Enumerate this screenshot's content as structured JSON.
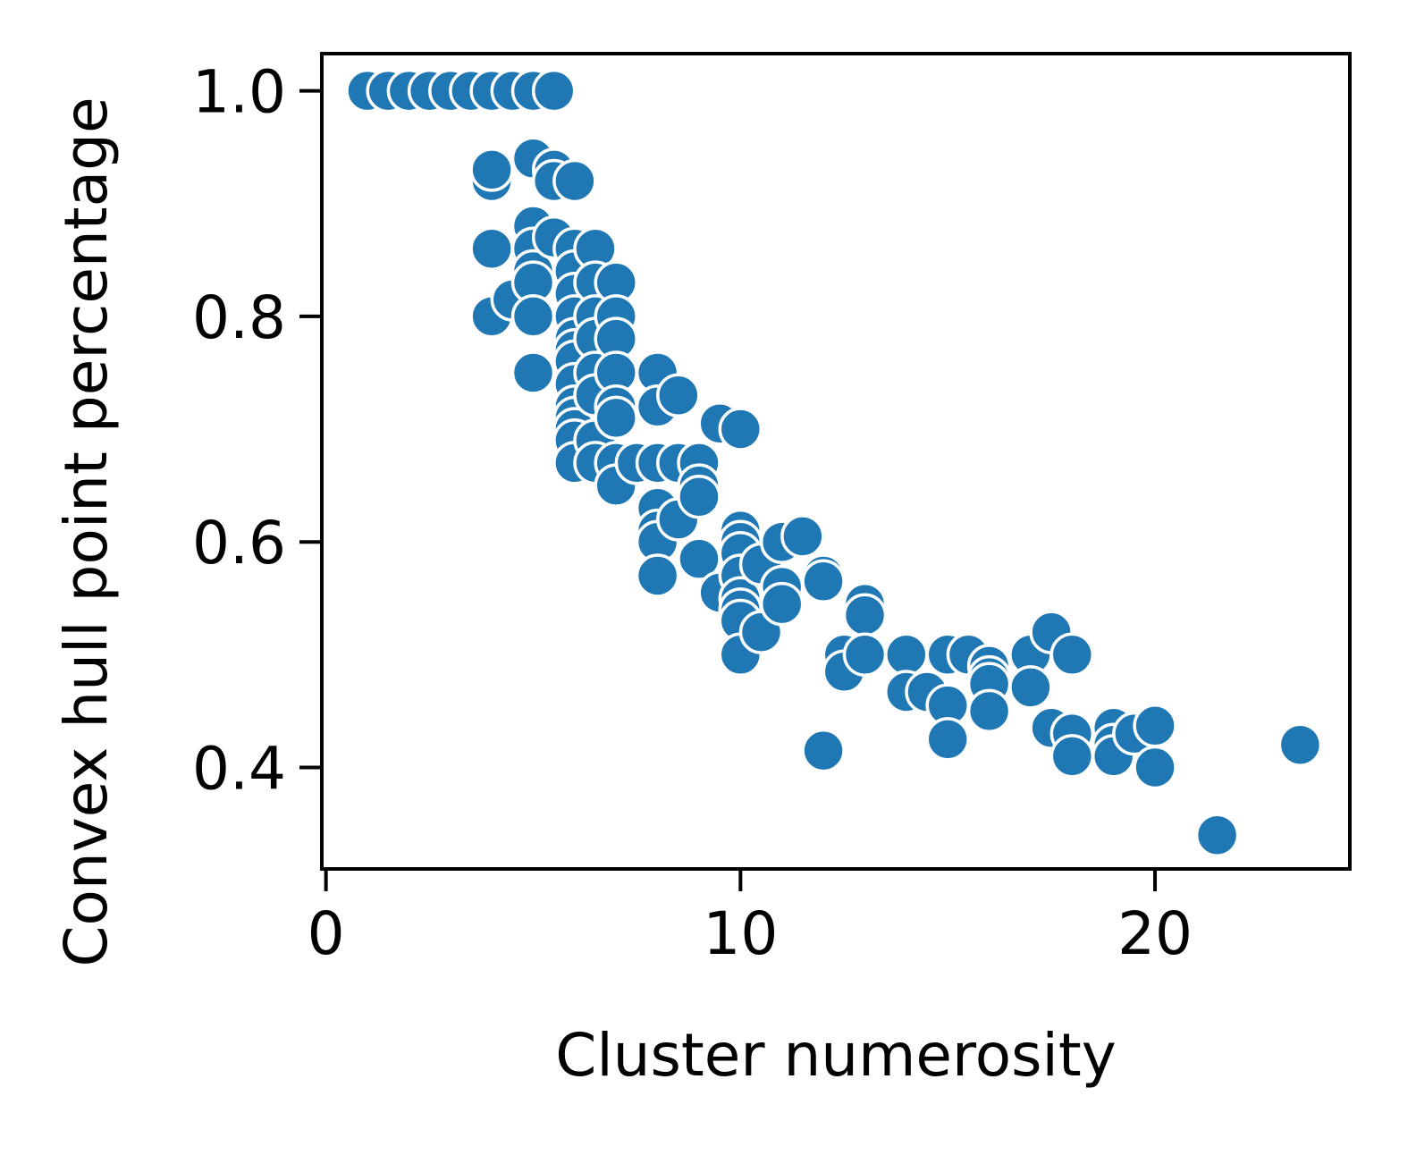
{
  "chart_data": {
    "type": "scatter",
    "xlabel": "Cluster numerosity",
    "ylabel": "Convex hull point percentage",
    "xlim": [
      -0.1,
      24.7
    ],
    "ylim": [
      0.31,
      1.033
    ],
    "xticks": [
      0,
      10,
      20
    ],
    "xtick_labels": [
      "0",
      "10",
      "20"
    ],
    "yticks": [
      0.4,
      0.6,
      0.8,
      1.0
    ],
    "ytick_labels": [
      "0.4",
      "0.6",
      "0.8",
      "1.0"
    ],
    "grid": false,
    "legend": "none",
    "marker_color": "#1f77b4",
    "marker_edge": "#ffffff",
    "points": [
      {
        "x": 1,
        "y": 1.0
      },
      {
        "x": 1.5,
        "y": 1.0
      },
      {
        "x": 2,
        "y": 1.0
      },
      {
        "x": 2.5,
        "y": 1.0
      },
      {
        "x": 3,
        "y": 1.0
      },
      {
        "x": 3.5,
        "y": 1.0
      },
      {
        "x": 4,
        "y": 1.0
      },
      {
        "x": 4.5,
        "y": 1.0
      },
      {
        "x": 5,
        "y": 1.0
      },
      {
        "x": 5.5,
        "y": 1.0
      },
      {
        "x": 4,
        "y": 0.92
      },
      {
        "x": 4,
        "y": 0.93
      },
      {
        "x": 5,
        "y": 0.94
      },
      {
        "x": 5.5,
        "y": 0.93
      },
      {
        "x": 5.5,
        "y": 0.92
      },
      {
        "x": 6,
        "y": 0.92
      },
      {
        "x": 4,
        "y": 0.86
      },
      {
        "x": 4,
        "y": 0.8
      },
      {
        "x": 4.5,
        "y": 0.815
      },
      {
        "x": 5,
        "y": 0.88
      },
      {
        "x": 5,
        "y": 0.86
      },
      {
        "x": 5,
        "y": 0.84
      },
      {
        "x": 5,
        "y": 0.83
      },
      {
        "x": 5,
        "y": 0.8
      },
      {
        "x": 5,
        "y": 0.75
      },
      {
        "x": 5.5,
        "y": 0.87
      },
      {
        "x": 6,
        "y": 0.86
      },
      {
        "x": 6,
        "y": 0.84
      },
      {
        "x": 6,
        "y": 0.82
      },
      {
        "x": 6,
        "y": 0.8
      },
      {
        "x": 6,
        "y": 0.78
      },
      {
        "x": 6,
        "y": 0.77
      },
      {
        "x": 6,
        "y": 0.76
      },
      {
        "x": 6,
        "y": 0.74
      },
      {
        "x": 6,
        "y": 0.72
      },
      {
        "x": 6,
        "y": 0.71
      },
      {
        "x": 6,
        "y": 0.7
      },
      {
        "x": 6,
        "y": 0.69
      },
      {
        "x": 6,
        "y": 0.67
      },
      {
        "x": 6.5,
        "y": 0.86
      },
      {
        "x": 6.5,
        "y": 0.83
      },
      {
        "x": 6.5,
        "y": 0.8
      },
      {
        "x": 6.5,
        "y": 0.78
      },
      {
        "x": 6.5,
        "y": 0.75
      },
      {
        "x": 6.5,
        "y": 0.73
      },
      {
        "x": 6.5,
        "y": 0.69
      },
      {
        "x": 6.5,
        "y": 0.67
      },
      {
        "x": 7,
        "y": 0.83
      },
      {
        "x": 7,
        "y": 0.8
      },
      {
        "x": 7,
        "y": 0.78
      },
      {
        "x": 7,
        "y": 0.75
      },
      {
        "x": 7,
        "y": 0.72
      },
      {
        "x": 7,
        "y": 0.71
      },
      {
        "x": 7,
        "y": 0.67
      },
      {
        "x": 7,
        "y": 0.65
      },
      {
        "x": 7.5,
        "y": 0.67
      },
      {
        "x": 8,
        "y": 0.75
      },
      {
        "x": 8,
        "y": 0.72
      },
      {
        "x": 8,
        "y": 0.67
      },
      {
        "x": 8,
        "y": 0.63
      },
      {
        "x": 8,
        "y": 0.61
      },
      {
        "x": 8,
        "y": 0.6
      },
      {
        "x": 8,
        "y": 0.57
      },
      {
        "x": 8.5,
        "y": 0.73
      },
      {
        "x": 8.5,
        "y": 0.67
      },
      {
        "x": 8.5,
        "y": 0.62
      },
      {
        "x": 9,
        "y": 0.67
      },
      {
        "x": 9,
        "y": 0.65
      },
      {
        "x": 9,
        "y": 0.64
      },
      {
        "x": 9,
        "y": 0.585
      },
      {
        "x": 9.5,
        "y": 0.705
      },
      {
        "x": 9.5,
        "y": 0.555
      },
      {
        "x": 10,
        "y": 0.7
      },
      {
        "x": 10,
        "y": 0.61
      },
      {
        "x": 10,
        "y": 0.6
      },
      {
        "x": 10,
        "y": 0.59
      },
      {
        "x": 10,
        "y": 0.57
      },
      {
        "x": 10,
        "y": 0.55
      },
      {
        "x": 10,
        "y": 0.54
      },
      {
        "x": 10,
        "y": 0.53
      },
      {
        "x": 10,
        "y": 0.5
      },
      {
        "x": 10.5,
        "y": 0.58
      },
      {
        "x": 10.5,
        "y": 0.52
      },
      {
        "x": 11,
        "y": 0.6
      },
      {
        "x": 11,
        "y": 0.56
      },
      {
        "x": 11,
        "y": 0.545
      },
      {
        "x": 11.5,
        "y": 0.605
      },
      {
        "x": 12,
        "y": 0.57
      },
      {
        "x": 12,
        "y": 0.565
      },
      {
        "x": 12,
        "y": 0.415
      },
      {
        "x": 12.5,
        "y": 0.5
      },
      {
        "x": 12.5,
        "y": 0.485
      },
      {
        "x": 13,
        "y": 0.545
      },
      {
        "x": 13,
        "y": 0.535
      },
      {
        "x": 13,
        "y": 0.5
      },
      {
        "x": 14,
        "y": 0.5
      },
      {
        "x": 14,
        "y": 0.467
      },
      {
        "x": 14.5,
        "y": 0.467
      },
      {
        "x": 15,
        "y": 0.5
      },
      {
        "x": 15,
        "y": 0.455
      },
      {
        "x": 15,
        "y": 0.425
      },
      {
        "x": 15.5,
        "y": 0.5
      },
      {
        "x": 16,
        "y": 0.49
      },
      {
        "x": 16,
        "y": 0.48
      },
      {
        "x": 16,
        "y": 0.474
      },
      {
        "x": 16,
        "y": 0.45
      },
      {
        "x": 17,
        "y": 0.5
      },
      {
        "x": 17,
        "y": 0.471
      },
      {
        "x": 17.5,
        "y": 0.52
      },
      {
        "x": 17.5,
        "y": 0.435
      },
      {
        "x": 18,
        "y": 0.5
      },
      {
        "x": 18,
        "y": 0.43
      },
      {
        "x": 18,
        "y": 0.41
      },
      {
        "x": 19,
        "y": 0.435
      },
      {
        "x": 19,
        "y": 0.42
      },
      {
        "x": 19,
        "y": 0.41
      },
      {
        "x": 19.5,
        "y": 0.43
      },
      {
        "x": 20,
        "y": 0.437
      },
      {
        "x": 20,
        "y": 0.4
      },
      {
        "x": 21.5,
        "y": 0.34
      },
      {
        "x": 23.5,
        "y": 0.42
      }
    ]
  }
}
